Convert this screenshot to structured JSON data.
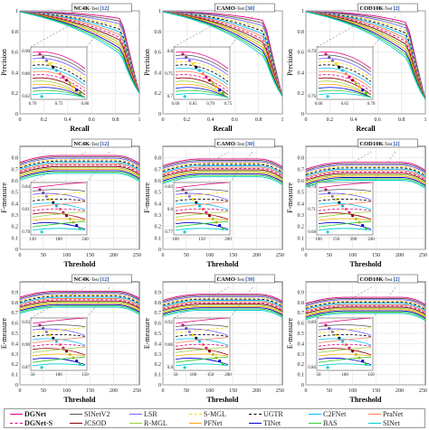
{
  "datasets": [
    {
      "name": "NC4K",
      "tag_a": "-Test",
      "badge": "12",
      "badge_color": "#1f4e9c"
    },
    {
      "name": "CAMO",
      "tag_a": "-Test",
      "badge": "30",
      "badge_color": "#1f4e9c"
    },
    {
      "name": "COD10K",
      "tag_a": "-Test",
      "badge": "2",
      "badge_color": "#1f4e9c"
    }
  ],
  "rows": [
    {
      "metric": "pr",
      "xlabel": "Recall",
      "ylabel": "Precision",
      "xticks": [
        "0",
        "0.2",
        "0.4",
        "0.6",
        "0.8",
        "1"
      ],
      "yticks": [
        "0",
        "0.2",
        "0.4",
        "0.6",
        "0.8",
        "1"
      ]
    },
    {
      "metric": "fm",
      "xlabel": "Threshold",
      "ylabel": "F-measure",
      "xticks": [
        "0",
        "50",
        "100",
        "150",
        "200",
        "250"
      ],
      "yticks": [
        "0",
        "0.1",
        "0.2",
        "0.3",
        "0.4",
        "0.5",
        "0.6",
        "0.7",
        "0.8"
      ]
    },
    {
      "metric": "em",
      "xlabel": "Threshold",
      "ylabel": "E-measure",
      "xticks": [
        "0",
        "50",
        "100",
        "150",
        "200",
        "250"
      ],
      "yticks": [
        "0",
        "0.1",
        "0.2",
        "0.3",
        "0.4",
        "0.5",
        "0.6",
        "0.7",
        "0.8",
        "0.9"
      ]
    }
  ],
  "insets": [
    [
      {
        "xt": [
          "0.70",
          "0.75",
          "0.80"
        ],
        "yt": [
          "0.90",
          "0.86",
          "0.82"
        ]
      },
      {
        "xt": [
          "0.60",
          "0.65",
          "0.70",
          "0.75"
        ],
        "yt": [
          "0.8",
          "0.75",
          "0.7"
        ]
      },
      {
        "xt": [
          "0.60",
          "0.65",
          "0.70"
        ],
        "yt": [
          "0.79",
          "0.76"
        ]
      }
    ],
    [
      {
        "xt": [
          "120",
          "180",
          "240"
        ],
        "yt": [
          "0.84",
          "0.81",
          "0.78"
        ]
      },
      {
        "xt": [
          "100",
          "150",
          "200"
        ],
        "yt": [
          "0.83",
          "0.8",
          "0.77"
        ]
      },
      {
        "xt": [
          "100",
          "150",
          "200",
          "240"
        ],
        "yt": [
          "0.74",
          "0.71",
          "0.68"
        ]
      }
    ],
    [
      {
        "xt": [
          "50",
          "100",
          "150"
        ],
        "yt": [
          "0.93",
          "0.90",
          "0.87"
        ]
      },
      {
        "xt": [
          "50",
          "100",
          "150",
          "200"
        ],
        "yt": [
          "0.92",
          "0.86",
          "0.8"
        ]
      },
      {
        "xt": [
          "50",
          "100",
          "150"
        ],
        "yt": [
          "0.89",
          "0.86"
        ]
      }
    ]
  ],
  "legend": [
    {
      "label": "DGNet",
      "color": "#e4007f",
      "dash": "",
      "bold": true
    },
    {
      "label": "SINetV2",
      "color": "#555555",
      "dash": "",
      "bold": false
    },
    {
      "label": "LSR",
      "color": "#7b61ff",
      "dash": "",
      "bold": false
    },
    {
      "label": "S-MGL",
      "color": "#ffd700",
      "dash": "3,2",
      "bold": false
    },
    {
      "label": "UGTR",
      "color": "#000000",
      "dash": "3,2",
      "bold": false
    },
    {
      "label": "C2FNet",
      "color": "#00bfff",
      "dash": "",
      "bold": false
    },
    {
      "label": "PraNet",
      "color": "#ff7f50",
      "dash": "",
      "bold": false
    },
    {
      "label": "DGNet-S",
      "color": "#e4007f",
      "dash": "3,2",
      "bold": true
    },
    {
      "label": "JCSOD",
      "color": "#8b0000",
      "dash": "",
      "bold": false
    },
    {
      "label": "R-MGL",
      "color": "#9acd32",
      "dash": "",
      "bold": false
    },
    {
      "label": "PFNet",
      "color": "#ffa500",
      "dash": "",
      "bold": false
    },
    {
      "label": "TINet",
      "color": "#0000cd",
      "dash": "",
      "bold": false
    },
    {
      "label": "BAS",
      "color": "#32cd32",
      "dash": "",
      "bold": false
    },
    {
      "label": "SINet",
      "color": "#00ced1",
      "dash": "",
      "bold": false
    }
  ],
  "chart_data": [
    {
      "type": "line",
      "panel": "NC4K PR",
      "x": [
        0,
        0.2,
        0.4,
        0.6,
        0.8,
        0.9,
        1.0
      ],
      "series": [
        {
          "name": "DGNet",
          "values": [
            0.99,
            0.97,
            0.95,
            0.92,
            0.86,
            0.75,
            0.22
          ]
        },
        {
          "name": "SINet",
          "values": [
            0.97,
            0.94,
            0.9,
            0.85,
            0.76,
            0.62,
            0.22
          ]
        }
      ]
    },
    {
      "type": "line",
      "panel": "CAMO PR",
      "x": [
        0,
        0.2,
        0.4,
        0.6,
        0.8,
        0.9,
        1.0
      ],
      "series": [
        {
          "name": "DGNet",
          "values": [
            0.98,
            0.95,
            0.92,
            0.88,
            0.78,
            0.62,
            0.22
          ]
        },
        {
          "name": "SINet",
          "values": [
            0.95,
            0.9,
            0.84,
            0.76,
            0.62,
            0.45,
            0.22
          ]
        }
      ]
    },
    {
      "type": "line",
      "panel": "COD10K PR",
      "x": [
        0,
        0.2,
        0.4,
        0.6,
        0.8,
        0.9,
        1.0
      ],
      "series": [
        {
          "name": "DGNet",
          "values": [
            0.98,
            0.95,
            0.91,
            0.86,
            0.75,
            0.6,
            0.15
          ]
        },
        {
          "name": "SINet",
          "values": [
            0.94,
            0.88,
            0.8,
            0.7,
            0.55,
            0.4,
            0.15
          ]
        }
      ]
    },
    {
      "type": "line",
      "panel": "NC4K Fm",
      "x": [
        0,
        50,
        100,
        150,
        200,
        250
      ],
      "series": [
        {
          "name": "DGNet",
          "values": [
            0.77,
            0.82,
            0.83,
            0.83,
            0.82,
            0.76
          ]
        },
        {
          "name": "SINet",
          "values": [
            0.73,
            0.77,
            0.77,
            0.76,
            0.74,
            0.66
          ]
        }
      ]
    },
    {
      "type": "line",
      "panel": "CAMO Fm",
      "x": [
        0,
        50,
        100,
        150,
        200,
        250
      ],
      "series": [
        {
          "name": "DGNet",
          "values": [
            0.75,
            0.81,
            0.82,
            0.82,
            0.81,
            0.74
          ]
        },
        {
          "name": "SINet",
          "values": [
            0.68,
            0.72,
            0.72,
            0.71,
            0.68,
            0.6
          ]
        }
      ]
    },
    {
      "type": "line",
      "panel": "COD10K Fm",
      "x": [
        0,
        50,
        100,
        150,
        200,
        250
      ],
      "series": [
        {
          "name": "DGNet",
          "values": [
            0.68,
            0.73,
            0.74,
            0.74,
            0.73,
            0.67
          ]
        },
        {
          "name": "SINet",
          "values": [
            0.6,
            0.65,
            0.66,
            0.65,
            0.62,
            0.55
          ]
        }
      ]
    },
    {
      "type": "line",
      "panel": "NC4K Em",
      "x": [
        0,
        50,
        100,
        150,
        200,
        250
      ],
      "series": [
        {
          "name": "DGNet",
          "values": [
            0.86,
            0.92,
            0.93,
            0.92,
            0.9,
            0.82
          ]
        },
        {
          "name": "SINet",
          "values": [
            0.82,
            0.87,
            0.87,
            0.86,
            0.84,
            0.74
          ]
        }
      ]
    },
    {
      "type": "line",
      "panel": "CAMO Em",
      "x": [
        0,
        50,
        100,
        150,
        200,
        250
      ],
      "series": [
        {
          "name": "DGNet",
          "values": [
            0.83,
            0.9,
            0.91,
            0.9,
            0.88,
            0.8
          ]
        },
        {
          "name": "SINet",
          "values": [
            0.77,
            0.82,
            0.82,
            0.8,
            0.76,
            0.66
          ]
        }
      ]
    },
    {
      "type": "line",
      "panel": "COD10K Em",
      "x": [
        0,
        50,
        100,
        150,
        200,
        250
      ],
      "series": [
        {
          "name": "DGNet",
          "values": [
            0.83,
            0.89,
            0.9,
            0.89,
            0.87,
            0.79
          ]
        },
        {
          "name": "SINet",
          "values": [
            0.76,
            0.82,
            0.83,
            0.81,
            0.77,
            0.66
          ]
        }
      ]
    }
  ]
}
